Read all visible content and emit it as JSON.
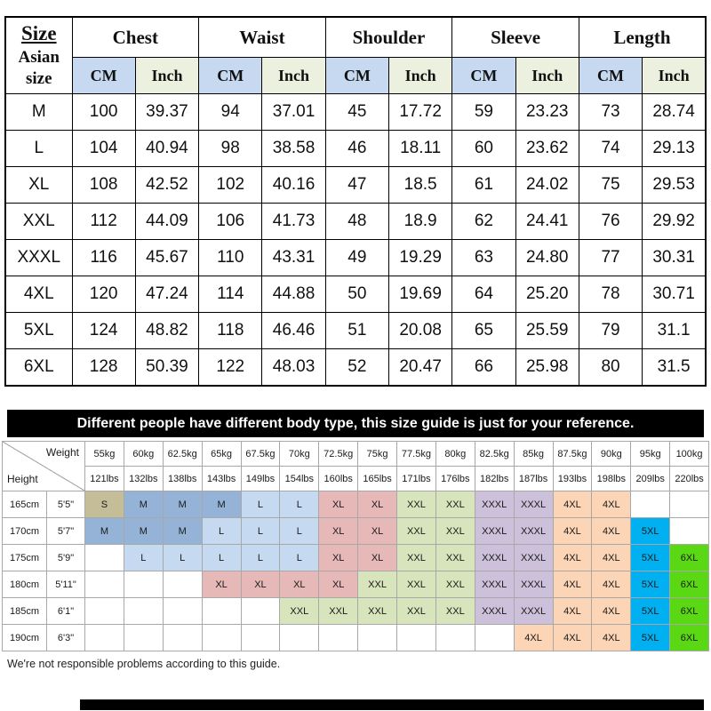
{
  "size_table": {
    "corner_title": "Size",
    "corner_sub1": "Asian",
    "corner_sub2": "size",
    "groups": [
      "Chest",
      "Waist",
      "Shoulder",
      "Sleeve",
      "Length"
    ],
    "unit_cm": "CM",
    "unit_inch": "Inch",
    "header_cm_bg": "#c6d9f0",
    "header_inch_bg": "#ebf1de",
    "rows": [
      {
        "size": "M",
        "values": [
          "100",
          "39.37",
          "94",
          "37.01",
          "45",
          "17.72",
          "59",
          "23.23",
          "73",
          "28.74"
        ]
      },
      {
        "size": "L",
        "values": [
          "104",
          "40.94",
          "98",
          "38.58",
          "46",
          "18.11",
          "60",
          "23.62",
          "74",
          "29.13"
        ]
      },
      {
        "size": "XL",
        "values": [
          "108",
          "42.52",
          "102",
          "40.16",
          "47",
          "18.5",
          "61",
          "24.02",
          "75",
          "29.53"
        ]
      },
      {
        "size": "XXL",
        "values": [
          "112",
          "44.09",
          "106",
          "41.73",
          "48",
          "18.9",
          "62",
          "24.41",
          "76",
          "29.92"
        ]
      },
      {
        "size": "XXXL",
        "values": [
          "116",
          "45.67",
          "110",
          "43.31",
          "49",
          "19.29",
          "63",
          "24.80",
          "77",
          "30.31"
        ]
      },
      {
        "size": "4XL",
        "values": [
          "120",
          "47.24",
          "114",
          "44.88",
          "50",
          "19.69",
          "64",
          "25.20",
          "78",
          "30.71"
        ]
      },
      {
        "size": "5XL",
        "values": [
          "124",
          "48.82",
          "118",
          "46.46",
          "51",
          "20.08",
          "65",
          "25.59",
          "79",
          "31.1"
        ]
      },
      {
        "size": "6XL",
        "values": [
          "128",
          "50.39",
          "122",
          "48.03",
          "52",
          "20.47",
          "66",
          "25.98",
          "80",
          "31.5"
        ]
      }
    ]
  },
  "banner": {
    "text": "Different people have different body type, this size guide is just for your reference.",
    "bg": "#000000",
    "fg": "#ffffff"
  },
  "fit_chart": {
    "weight_label": "Weight",
    "height_label": "Height",
    "weights_kg": [
      "55kg",
      "60kg",
      "62.5kg",
      "65kg",
      "67.5kg",
      "70kg",
      "72.5kg",
      "75kg",
      "77.5kg",
      "80kg",
      "82.5kg",
      "85kg",
      "87.5kg",
      "90kg",
      "95kg",
      "100kg"
    ],
    "weights_lbs": [
      "121lbs",
      "132lbs",
      "138lbs",
      "143lbs",
      "149lbs",
      "154lbs",
      "160lbs",
      "165lbs",
      "171lbs",
      "176lbs",
      "182lbs",
      "187lbs",
      "193lbs",
      "198lbs",
      "209lbs",
      "220lbs"
    ],
    "rows": [
      {
        "height_cm": "165cm",
        "height_ft": "5'5\"",
        "cells": [
          "S",
          "M",
          "M",
          "M",
          "L",
          "L",
          "XL",
          "XL",
          "XXL",
          "XXL",
          "XXXL",
          "XXXL",
          "4XL",
          "4XL",
          "",
          ""
        ]
      },
      {
        "height_cm": "170cm",
        "height_ft": "5'7\"",
        "cells": [
          "M",
          "M",
          "M",
          "L",
          "L",
          "L",
          "XL",
          "XL",
          "XXL",
          "XXL",
          "XXXL",
          "XXXL",
          "4XL",
          "4XL",
          "5XL",
          ""
        ]
      },
      {
        "height_cm": "175cm",
        "height_ft": "5'9\"",
        "cells": [
          "",
          "L",
          "L",
          "L",
          "L",
          "L",
          "XL",
          "XL",
          "XXL",
          "XXL",
          "XXXL",
          "XXXL",
          "4XL",
          "4XL",
          "5XL",
          "6XL"
        ]
      },
      {
        "height_cm": "180cm",
        "height_ft": "5'11\"",
        "cells": [
          "",
          "",
          "",
          "XL",
          "XL",
          "XL",
          "XL",
          "XXL",
          "XXL",
          "XXL",
          "XXXL",
          "XXXL",
          "4XL",
          "4XL",
          "5XL",
          "6XL"
        ]
      },
      {
        "height_cm": "185cm",
        "height_ft": "6'1\"",
        "cells": [
          "",
          "",
          "",
          "",
          "",
          "XXL",
          "XXL",
          "XXL",
          "XXL",
          "XXL",
          "XXXL",
          "XXXL",
          "4XL",
          "4XL",
          "5XL",
          "6XL"
        ]
      },
      {
        "height_cm": "190cm",
        "height_ft": "6'3\"",
        "cells": [
          "",
          "",
          "",
          "",
          "",
          "",
          "",
          "",
          "",
          "",
          "",
          "4XL",
          "4XL",
          "4XL",
          "5XL",
          "6XL"
        ]
      }
    ],
    "size_colors": {
      "S": "#c4bd97",
      "M": "#95b3d7",
      "L": "#c5d9f1",
      "XL": "#e6b9b8",
      "XXL": "#d7e4bc",
      "XXXL": "#ccc0da",
      "4XL": "#fbd5b5",
      "5XL": "#00b0f0",
      "6XL": "#5ad813"
    }
  },
  "footer": {
    "text": "We're not responsible problems according to this guide."
  }
}
